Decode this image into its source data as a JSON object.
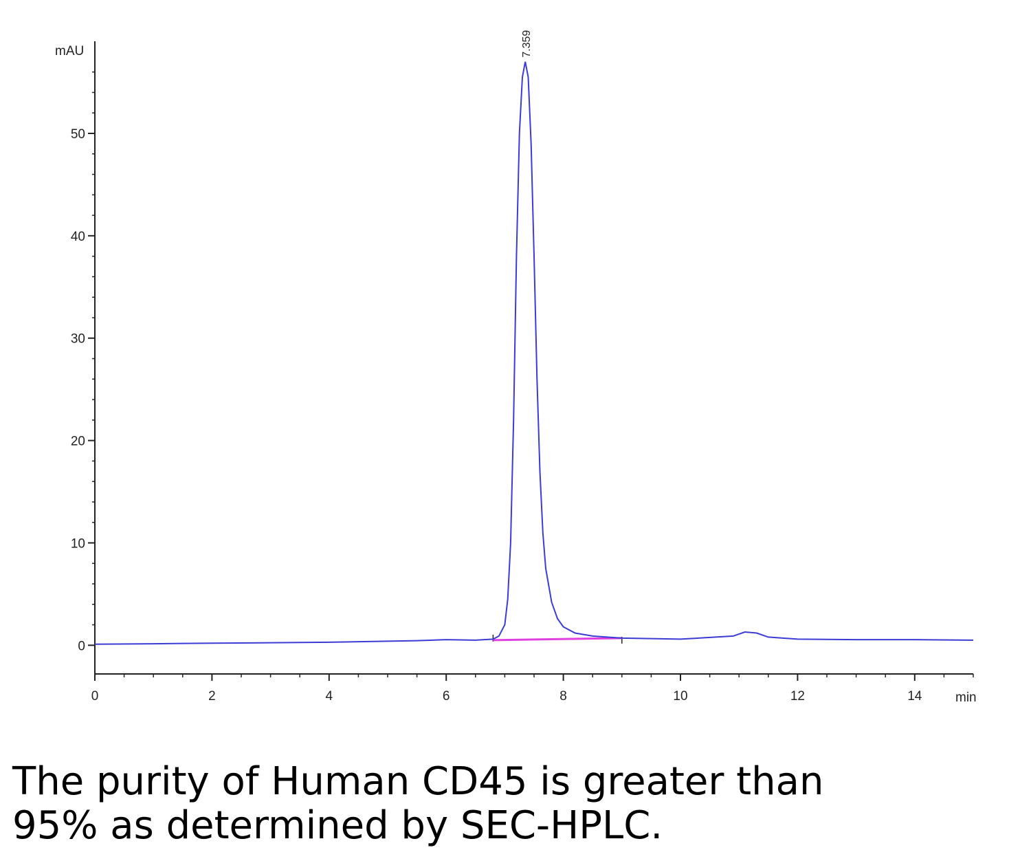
{
  "chart_data": {
    "type": "line",
    "title": "",
    "ylabel": "mAU",
    "xlabel": "min",
    "xlim": [
      0,
      15
    ],
    "ylim": [
      -2.8,
      59
    ],
    "x_ticks": [
      0,
      2,
      4,
      6,
      8,
      10,
      12,
      14
    ],
    "y_ticks": [
      0,
      10,
      20,
      30,
      40,
      50
    ],
    "grid": false,
    "legend": "none",
    "series": [
      {
        "color": "#3b3bd6",
        "x": [
          0,
          1,
          2,
          3,
          4,
          5,
          5.5,
          6,
          6.5,
          6.8,
          6.9,
          7.0,
          7.05,
          7.1,
          7.15,
          7.2,
          7.25,
          7.3,
          7.35,
          7.4,
          7.45,
          7.5,
          7.55,
          7.6,
          7.65,
          7.7,
          7.8,
          7.9,
          8.0,
          8.2,
          8.5,
          9.0,
          10.0,
          10.9,
          11.1,
          11.3,
          11.5,
          12.0,
          13.0,
          14.0,
          15.0
        ],
        "y": [
          0.1,
          0.15,
          0.2,
          0.25,
          0.3,
          0.4,
          0.45,
          0.55,
          0.5,
          0.6,
          0.9,
          2.0,
          4.5,
          10.0,
          22.0,
          38.0,
          50.0,
          55.5,
          57.0,
          55.5,
          49.0,
          38.0,
          26.0,
          17.0,
          11.0,
          7.5,
          4.2,
          2.6,
          1.8,
          1.2,
          0.9,
          0.7,
          0.6,
          0.9,
          1.3,
          1.2,
          0.8,
          0.6,
          0.55,
          0.55,
          0.5
        ]
      }
    ],
    "baseline": {
      "color": "#e040e0",
      "x": [
        6.8,
        9.0
      ],
      "y": [
        0.5,
        0.7
      ]
    },
    "annotations": [
      {
        "text": "7.359",
        "x": 7.359,
        "y": 57.0
      }
    ]
  },
  "caption": {
    "line1": "The purity of Human CD45 is greater than",
    "line2": "95% as determined by SEC-HPLC."
  }
}
